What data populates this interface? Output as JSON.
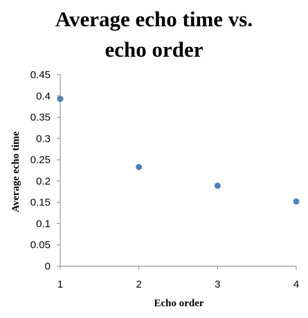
{
  "chart_data": {
    "type": "scatter",
    "title_lines": [
      "Average echo time vs.",
      "echo order"
    ],
    "xlabel": "Echo order",
    "ylabel": "Average echo time",
    "x": [
      1,
      2,
      3,
      4
    ],
    "y": [
      0.393,
      0.233,
      0.189,
      0.152
    ],
    "xlim": [
      1,
      4
    ],
    "ylim": [
      0,
      0.45
    ],
    "xticks": [
      "1",
      "2",
      "3",
      "4"
    ],
    "yticks": [
      "0",
      "0.05",
      "0.1",
      "0.15",
      "0.2",
      "0.25",
      "0.3",
      "0.35",
      "0.4",
      "0.45"
    ],
    "grid": false,
    "legend": "none",
    "marker_color": "#4F81BD",
    "axis_color": "#868686"
  }
}
